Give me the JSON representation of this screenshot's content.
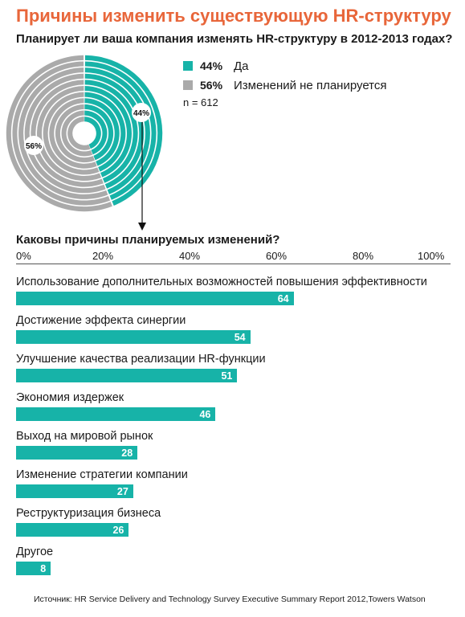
{
  "title": "Причины изменить существующую HR-структуру",
  "source": "Источник: HR Service Delivery and Technology Survey Executive Summary Report 2012,Towers Watson",
  "colors": {
    "title": "#e8663a",
    "teal": "#17b3a8",
    "gray": "#aaaaaa"
  },
  "chart_data": [
    {
      "type": "pie",
      "title": "Планирует ли ваша компания изменять HR-структуру в 2012-2013 годах?",
      "slices": [
        {
          "label": "Да",
          "pct_label": "44%",
          "value": 44,
          "color": "#17b3a8"
        },
        {
          "label": "Изменений не планируется",
          "pct_label": "56%",
          "value": 56,
          "color": "#aaaaaa"
        }
      ],
      "note": "n = 612"
    },
    {
      "type": "bar",
      "orientation": "horizontal",
      "title": "Каковы причины планируемых изменений?",
      "xlim": [
        0,
        100
      ],
      "ticks": [
        "0%",
        "20%",
        "40%",
        "60%",
        "80%",
        "100%"
      ],
      "categories": [
        "Использование дополнительных возможностей повышения эффективности",
        "Достижение эффекта синергии",
        "Улучшение качества реализации HR-функции",
        "Экономия издержек",
        "Выход на мировой рынок",
        "Изменение стратегии компании",
        "Реструктуризация бизнеса",
        "Другое"
      ],
      "values": [
        64,
        54,
        51,
        46,
        28,
        27,
        26,
        8
      ],
      "value_labels": [
        "64",
        "54",
        "51",
        "46",
        "28",
        "27",
        "26",
        "8"
      ],
      "color": "#17b3a8"
    }
  ]
}
